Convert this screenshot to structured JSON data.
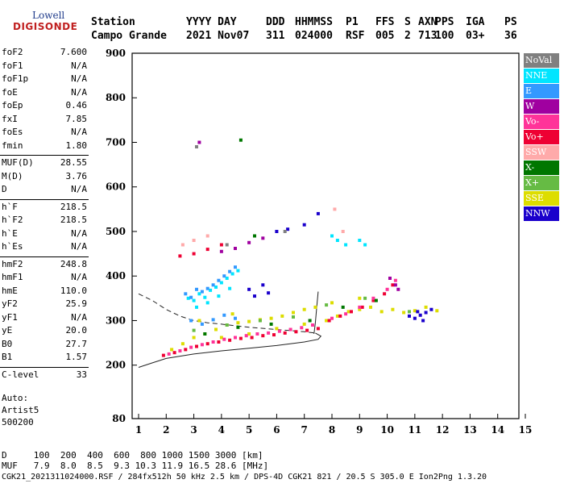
{
  "logo": {
    "brand": "Lowell",
    "product": "DIGISONDE"
  },
  "header": {
    "cols": [
      {
        "label": "Station",
        "value": "Campo Grande"
      },
      {
        "label": "YYYY DAY",
        "value": "2021 Nov07"
      },
      {
        "label": "DDD",
        "value": "311"
      },
      {
        "label": "HHMMSS",
        "value": "024000"
      },
      {
        "label": "P1",
        "value": "RSF"
      },
      {
        "label": "FFS",
        "value": "005"
      },
      {
        "label": "S",
        "value": "2"
      },
      {
        "label": "AXN",
        "value": "713"
      },
      {
        "label": "PPS",
        "value": "100"
      },
      {
        "label": "IGA",
        "value": "03+"
      },
      {
        "label": "PS",
        "value": "36"
      }
    ]
  },
  "params": [
    {
      "key": "foF2",
      "value": "7.600",
      "sep_before": false
    },
    {
      "key": "foF1",
      "value": "N/A",
      "sep_before": false
    },
    {
      "key": "foF1p",
      "value": "N/A",
      "sep_before": false
    },
    {
      "key": "foE",
      "value": "N/A",
      "sep_before": false
    },
    {
      "key": "foEp",
      "value": "0.46",
      "sep_before": false
    },
    {
      "key": "fxI",
      "value": "7.85",
      "sep_before": false
    },
    {
      "key": "foEs",
      "value": "N/A",
      "sep_before": false
    },
    {
      "key": "fmin",
      "value": "1.80",
      "sep_before": false
    },
    {
      "key": "MUF(D)",
      "value": "28.55",
      "sep_before": true
    },
    {
      "key": "M(D)",
      "value": "3.76",
      "sep_before": false
    },
    {
      "key": "D",
      "value": "N/A",
      "sep_before": false
    },
    {
      "key": "h`F",
      "value": "218.5",
      "sep_before": true
    },
    {
      "key": "h`F2",
      "value": "218.5",
      "sep_before": false
    },
    {
      "key": "h`E",
      "value": "N/A",
      "sep_before": false
    },
    {
      "key": "h`Es",
      "value": "N/A",
      "sep_before": false
    },
    {
      "key": "hmF2",
      "value": "248.8",
      "sep_before": true
    },
    {
      "key": "hmF1",
      "value": "N/A",
      "sep_before": false
    },
    {
      "key": "hmE",
      "value": "110.0",
      "sep_before": false
    },
    {
      "key": "yF2",
      "value": "25.9",
      "sep_before": false
    },
    {
      "key": "yF1",
      "value": "N/A",
      "sep_before": false
    },
    {
      "key": "yE",
      "value": "20.0",
      "sep_before": false
    },
    {
      "key": "B0",
      "value": "27.7",
      "sep_before": false
    },
    {
      "key": "B1",
      "value": "1.57",
      "sep_before": false
    },
    {
      "key": "C-level",
      "value": "33",
      "sep_before": true
    }
  ],
  "autoscaling": {
    "label": "Auto:",
    "line1": "Artist5",
    "line2": "500200"
  },
  "legend": [
    {
      "name": "NoVal",
      "color": "#808080"
    },
    {
      "name": "NNE",
      "color": "#00e5ff"
    },
    {
      "name": "E",
      "color": "#3399ff"
    },
    {
      "name": "W",
      "color": "#a000a0"
    },
    {
      "name": "Vo-",
      "color": "#ff3399"
    },
    {
      "name": "Vo+",
      "color": "#ee0033"
    },
    {
      "name": "SSW",
      "color": "#ffaaaa"
    },
    {
      "name": "X-",
      "color": "#007700"
    },
    {
      "name": "X+",
      "color": "#66bb44"
    },
    {
      "name": "SSE",
      "color": "#dddd00"
    },
    {
      "name": "NNW",
      "color": "#1a00cc"
    }
  ],
  "footer": {
    "line1": "D     100  200  400  600  800 1000 1500 3000 [km]",
    "line2": "MUF   7.9  8.0  8.5  9.3 10.3 11.9 16.5 28.6 [MHz]",
    "line3": "CGK21_2021311024000.RSF / 284fx512h 50 kHz 2.5 km / DPS-4D CGK21 821 / 20.5 S 305.0 E Ion2Png 1.3.20"
  },
  "chart_data": {
    "type": "scatter",
    "title": "",
    "xlabel": "",
    "ylabel": "",
    "xlim": [
      1,
      15
    ],
    "ylim": [
      80,
      900
    ],
    "x_ticks": [
      1,
      2,
      3,
      4,
      5,
      6,
      7,
      8,
      9,
      10,
      11,
      12,
      13,
      14,
      15
    ],
    "y_ticks": [
      80,
      200,
      300,
      400,
      500,
      600,
      700,
      800,
      900
    ],
    "grid": false,
    "legend_position": "right",
    "series": [
      {
        "name": "SSE",
        "color": "#dddd00",
        "points": [
          [
            2.2,
            235
          ],
          [
            2.6,
            248
          ],
          [
            3.0,
            262
          ],
          [
            3.4,
            270
          ],
          [
            3.8,
            280
          ],
          [
            4.2,
            290
          ],
          [
            4.6,
            295
          ],
          [
            5.0,
            298
          ],
          [
            5.4,
            302
          ],
          [
            5.8,
            305
          ],
          [
            6.2,
            310
          ],
          [
            6.6,
            318
          ],
          [
            7.0,
            325
          ],
          [
            7.4,
            330
          ],
          [
            7.8,
            300
          ],
          [
            8.2,
            310
          ],
          [
            8.6,
            320
          ],
          [
            9.0,
            325
          ],
          [
            9.4,
            330
          ],
          [
            9.8,
            320
          ],
          [
            10.2,
            325
          ],
          [
            10.6,
            318
          ],
          [
            11.0,
            322
          ],
          [
            11.4,
            330
          ],
          [
            11.8,
            322
          ],
          [
            4.0,
            262
          ],
          [
            5.0,
            270
          ],
          [
            6.0,
            282
          ],
          [
            7.0,
            292
          ],
          [
            8.0,
            340
          ],
          [
            9.0,
            350
          ],
          [
            3.2,
            300
          ],
          [
            4.4,
            315
          ]
        ]
      },
      {
        "name": "Vo+",
        "color": "#ee0033",
        "points": [
          [
            1.9,
            222
          ],
          [
            2.3,
            228
          ],
          [
            2.7,
            235
          ],
          [
            3.1,
            242
          ],
          [
            3.5,
            248
          ],
          [
            3.9,
            252
          ],
          [
            4.3,
            256
          ],
          [
            4.7,
            260
          ],
          [
            5.1,
            262
          ],
          [
            5.5,
            266
          ],
          [
            5.9,
            268
          ],
          [
            6.3,
            272
          ],
          [
            6.7,
            275
          ],
          [
            7.1,
            278
          ],
          [
            7.5,
            282
          ],
          [
            7.9,
            300
          ],
          [
            8.3,
            310
          ],
          [
            8.7,
            320
          ],
          [
            9.1,
            330
          ],
          [
            9.5,
            345
          ],
          [
            9.9,
            360
          ],
          [
            10.2,
            380
          ],
          [
            2.5,
            445
          ],
          [
            3.0,
            450
          ],
          [
            3.5,
            460
          ],
          [
            4.0,
            470
          ]
        ]
      },
      {
        "name": "Vo-",
        "color": "#ff3399",
        "points": [
          [
            2.1,
            225
          ],
          [
            2.5,
            232
          ],
          [
            2.9,
            240
          ],
          [
            3.3,
            246
          ],
          [
            3.7,
            252
          ],
          [
            4.1,
            258
          ],
          [
            4.5,
            262
          ],
          [
            4.9,
            266
          ],
          [
            5.3,
            270
          ],
          [
            5.7,
            272
          ],
          [
            6.1,
            276
          ],
          [
            6.5,
            280
          ],
          [
            6.9,
            284
          ],
          [
            7.3,
            290
          ],
          [
            8.0,
            305
          ],
          [
            8.5,
            315
          ],
          [
            9.0,
            330
          ],
          [
            9.5,
            350
          ],
          [
            10.0,
            370
          ],
          [
            10.3,
            390
          ]
        ]
      },
      {
        "name": "NNE",
        "color": "#00e5ff",
        "points": [
          [
            2.8,
            350
          ],
          [
            3.0,
            345
          ],
          [
            3.2,
            360
          ],
          [
            3.4,
            352
          ],
          [
            3.6,
            368
          ],
          [
            3.8,
            375
          ],
          [
            4.0,
            385
          ],
          [
            4.2,
            395
          ],
          [
            4.4,
            405
          ],
          [
            4.6,
            412
          ],
          [
            3.1,
            330
          ],
          [
            3.5,
            340
          ],
          [
            3.9,
            355
          ],
          [
            4.3,
            372
          ],
          [
            8.0,
            490
          ],
          [
            8.2,
            480
          ],
          [
            8.5,
            470
          ],
          [
            9.0,
            480
          ],
          [
            9.2,
            470
          ]
        ]
      },
      {
        "name": "E",
        "color": "#3399ff",
        "points": [
          [
            2.7,
            360
          ],
          [
            2.9,
            352
          ],
          [
            3.1,
            370
          ],
          [
            3.3,
            365
          ],
          [
            3.5,
            372
          ],
          [
            3.7,
            380
          ],
          [
            3.9,
            390
          ],
          [
            4.1,
            400
          ],
          [
            4.3,
            410
          ],
          [
            4.5,
            420
          ],
          [
            2.9,
            300
          ],
          [
            3.3,
            292
          ],
          [
            3.7,
            302
          ],
          [
            4.1,
            312
          ],
          [
            4.5,
            305
          ]
        ]
      },
      {
        "name": "W",
        "color": "#a000a0",
        "points": [
          [
            3.2,
            700
          ],
          [
            4.0,
            455
          ],
          [
            4.5,
            462
          ],
          [
            5.0,
            475
          ],
          [
            5.5,
            485
          ],
          [
            10.3,
            380
          ],
          [
            10.4,
            370
          ],
          [
            10.1,
            395
          ]
        ]
      },
      {
        "name": "X-",
        "color": "#007700",
        "points": [
          [
            3.4,
            270
          ],
          [
            4.6,
            285
          ],
          [
            5.8,
            292
          ],
          [
            7.2,
            300
          ],
          [
            8.4,
            330
          ],
          [
            9.6,
            345
          ],
          [
            4.7,
            705
          ],
          [
            5.2,
            490
          ]
        ]
      },
      {
        "name": "X+",
        "color": "#66bb44",
        "points": [
          [
            3.0,
            278
          ],
          [
            4.2,
            290
          ],
          [
            5.4,
            300
          ],
          [
            6.6,
            308
          ],
          [
            7.8,
            335
          ],
          [
            9.2,
            350
          ],
          [
            10.8,
            320
          ]
        ]
      },
      {
        "name": "NNW",
        "color": "#1a00cc",
        "points": [
          [
            5.0,
            370
          ],
          [
            5.2,
            355
          ],
          [
            5.5,
            380
          ],
          [
            5.7,
            362
          ],
          [
            6.0,
            500
          ],
          [
            6.4,
            505
          ],
          [
            7.0,
            515
          ],
          [
            7.5,
            540
          ],
          [
            10.8,
            310
          ],
          [
            11.0,
            305
          ],
          [
            11.2,
            312
          ],
          [
            11.4,
            318
          ],
          [
            11.6,
            325
          ],
          [
            11.3,
            300
          ],
          [
            11.1,
            320
          ]
        ]
      },
      {
        "name": "SSW",
        "color": "#ffaaaa",
        "points": [
          [
            2.6,
            470
          ],
          [
            3.0,
            480
          ],
          [
            3.5,
            490
          ],
          [
            8.1,
            550
          ],
          [
            8.4,
            500
          ]
        ]
      },
      {
        "name": "NoVal",
        "color": "#808080",
        "points": [
          [
            3.1,
            690
          ],
          [
            4.2,
            470
          ],
          [
            6.3,
            500
          ]
        ]
      }
    ],
    "curves": [
      {
        "kind": "dashed",
        "points": [
          [
            1.0,
            360
          ],
          [
            1.5,
            345
          ],
          [
            2.0,
            325
          ],
          [
            2.5,
            310
          ],
          [
            3.0,
            300
          ],
          [
            3.5,
            295
          ],
          [
            4.0,
            292
          ],
          [
            5.0,
            285
          ],
          [
            6.0,
            280
          ],
          [
            7.0,
            275
          ],
          [
            7.4,
            272
          ]
        ]
      },
      {
        "kind": "solid",
        "points": [
          [
            1.0,
            195
          ],
          [
            1.5,
            205
          ],
          [
            2.0,
            215
          ],
          [
            3.0,
            225
          ],
          [
            4.0,
            232
          ],
          [
            5.0,
            238
          ],
          [
            6.0,
            244
          ],
          [
            7.0,
            252
          ],
          [
            7.5,
            258
          ],
          [
            7.6,
            265
          ],
          [
            7.4,
            272
          ]
        ]
      },
      {
        "kind": "solid",
        "points": [
          [
            7.35,
            270
          ],
          [
            7.4,
            295
          ],
          [
            7.45,
            330
          ],
          [
            7.5,
            365
          ]
        ]
      }
    ]
  }
}
